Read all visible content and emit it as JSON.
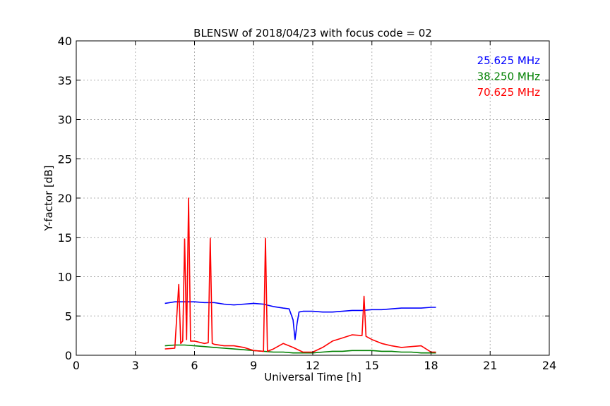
{
  "chart_data": {
    "type": "line",
    "title": "BLENSW of 2018/04/23 with focus code = 02",
    "xlabel": "Universal Time [h]",
    "ylabel": "Y-factor [dB]",
    "xlim": [
      0,
      24
    ],
    "ylim": [
      0,
      40
    ],
    "x_ticks": [
      0,
      3,
      6,
      9,
      12,
      15,
      18,
      21,
      24
    ],
    "y_ticks": [
      0,
      5,
      10,
      15,
      20,
      25,
      30,
      35,
      40
    ],
    "grid": true,
    "legend_position": "top-right",
    "series": [
      {
        "name": "25.625 MHz",
        "color": "#0000ff",
        "x": [
          4.5,
          5.0,
          5.5,
          6.0,
          6.5,
          7.0,
          7.5,
          8.0,
          8.5,
          9.0,
          9.5,
          10.0,
          10.5,
          10.8,
          11.0,
          11.1,
          11.2,
          11.3,
          11.5,
          12.0,
          12.5,
          13.0,
          13.5,
          14.0,
          14.5,
          15.0,
          15.5,
          16.0,
          16.5,
          17.0,
          17.5,
          18.0,
          18.25
        ],
        "y": [
          6.6,
          6.8,
          6.8,
          6.8,
          6.7,
          6.7,
          6.5,
          6.4,
          6.5,
          6.6,
          6.5,
          6.2,
          6.0,
          5.9,
          4.5,
          2.0,
          4.0,
          5.5,
          5.6,
          5.6,
          5.5,
          5.5,
          5.6,
          5.7,
          5.7,
          5.8,
          5.8,
          5.9,
          6.0,
          6.0,
          6.0,
          6.1,
          6.1
        ]
      },
      {
        "name": "38.250 MHz",
        "color": "#008000",
        "x": [
          4.5,
          5.0,
          5.5,
          6.0,
          6.5,
          7.0,
          7.5,
          8.0,
          8.5,
          9.0,
          9.5,
          10.0,
          10.5,
          11.0,
          11.5,
          12.0,
          12.5,
          13.0,
          13.5,
          14.0,
          14.5,
          15.0,
          15.5,
          16.0,
          16.5,
          17.0,
          17.5,
          18.0,
          18.25
        ],
        "y": [
          1.2,
          1.3,
          1.3,
          1.2,
          1.1,
          1.0,
          0.9,
          0.8,
          0.7,
          0.6,
          0.5,
          0.4,
          0.4,
          0.3,
          0.3,
          0.3,
          0.4,
          0.5,
          0.5,
          0.6,
          0.6,
          0.6,
          0.5,
          0.5,
          0.4,
          0.4,
          0.3,
          0.3,
          0.3
        ]
      },
      {
        "name": "70.625 MHz",
        "color": "#ff0000",
        "x": [
          4.5,
          5.0,
          5.2,
          5.3,
          5.4,
          5.5,
          5.6,
          5.7,
          5.8,
          6.0,
          6.5,
          6.7,
          6.8,
          6.9,
          7.0,
          7.5,
          8.0,
          8.5,
          9.0,
          9.5,
          9.6,
          9.7,
          10.0,
          10.5,
          11.0,
          11.5,
          12.0,
          12.5,
          13.0,
          13.5,
          14.0,
          14.5,
          14.6,
          14.7,
          15.0,
          15.5,
          16.0,
          16.5,
          17.0,
          17.5,
          18.0,
          18.25
        ],
        "y": [
          0.8,
          0.9,
          9.0,
          1.5,
          1.8,
          14.8,
          2.0,
          20.0,
          1.8,
          1.8,
          1.5,
          1.6,
          14.9,
          1.5,
          1.4,
          1.2,
          1.2,
          1.0,
          0.6,
          0.5,
          14.9,
          0.5,
          0.8,
          1.5,
          1.0,
          0.4,
          0.4,
          1.0,
          1.8,
          2.2,
          2.6,
          2.5,
          7.5,
          2.4,
          2.0,
          1.5,
          1.2,
          1.0,
          1.1,
          1.2,
          0.4,
          0.4
        ]
      }
    ]
  }
}
